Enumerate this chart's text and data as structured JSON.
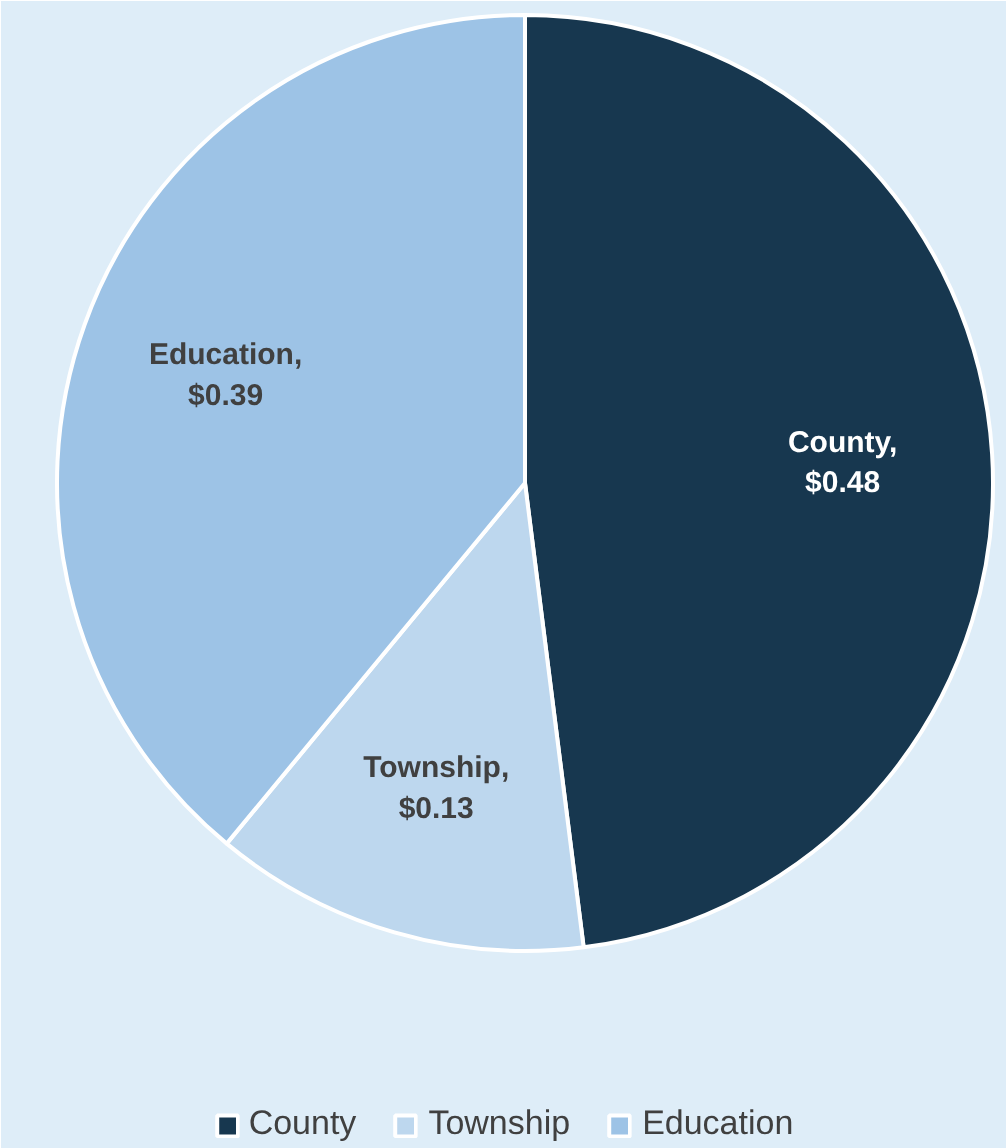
{
  "chart_data": {
    "type": "pie",
    "categories": [
      "County",
      "Township",
      "Education"
    ],
    "values": [
      0.48,
      0.13,
      0.39
    ],
    "value_labels": [
      "County,\n$0.48",
      "Township,\n$0.13",
      "Education,\n$0.39"
    ],
    "colors": [
      "#17374f",
      "#bdd7ee",
      "#9dc3e6"
    ],
    "legend": "bottom"
  }
}
